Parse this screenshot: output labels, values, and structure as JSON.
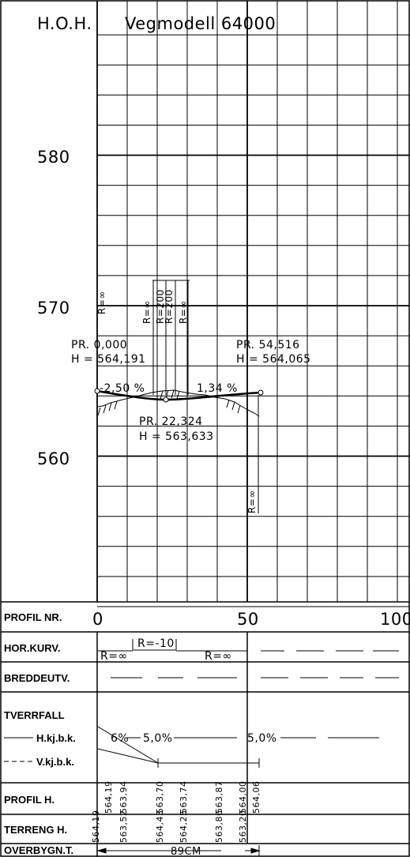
{
  "header": {
    "left_label": "H.O.H.",
    "title": "Vegmodell 64000"
  },
  "elevation_axis": {
    "labels": [
      "580",
      "570",
      "560"
    ]
  },
  "points": [
    {
      "station": "PR. 0,000",
      "height": "H = 564,191"
    },
    {
      "station": "PR. 54,516",
      "height": "H = 564,065"
    },
    {
      "station": "PR. 22,324",
      "height": "H = 563,633"
    }
  ],
  "grades": [
    "-2,50 %",
    "1,34 %"
  ],
  "vertical_radius_labels": [
    "R=∞",
    "R=∞",
    "R=200",
    "R=200",
    "R=∞",
    "R=∞"
  ],
  "rows": {
    "profil_nr": {
      "label": "PROFIL NR.",
      "ticks": [
        "0",
        "50",
        "100"
      ]
    },
    "hor_kurv": {
      "label": "HOR.KURV.",
      "values": [
        "R=∞",
        "R=-10",
        "R=∞"
      ]
    },
    "breddeutv": {
      "label": "BREDDEUTV."
    },
    "tverrfall": {
      "label": "TVERRFALL",
      "h_label": "H.kj.b.k.",
      "v_label": "V.kj.b.k.",
      "values": [
        "6%",
        "5,0%",
        "5,0%"
      ]
    },
    "profil_h": {
      "label": "PROFIL H.",
      "values": [
        "564,19",
        "563,94",
        "563,70",
        "563,74",
        "563,87",
        "564,00",
        "564,06"
      ]
    },
    "terreng_h": {
      "label": "TERRENG H.",
      "values": [
        "564,19",
        "563,52",
        "564,43",
        "564,25",
        "563,86",
        "563,20"
      ]
    },
    "overbygn": {
      "label": "OVERBYGN.T.",
      "value": "89CM"
    }
  }
}
